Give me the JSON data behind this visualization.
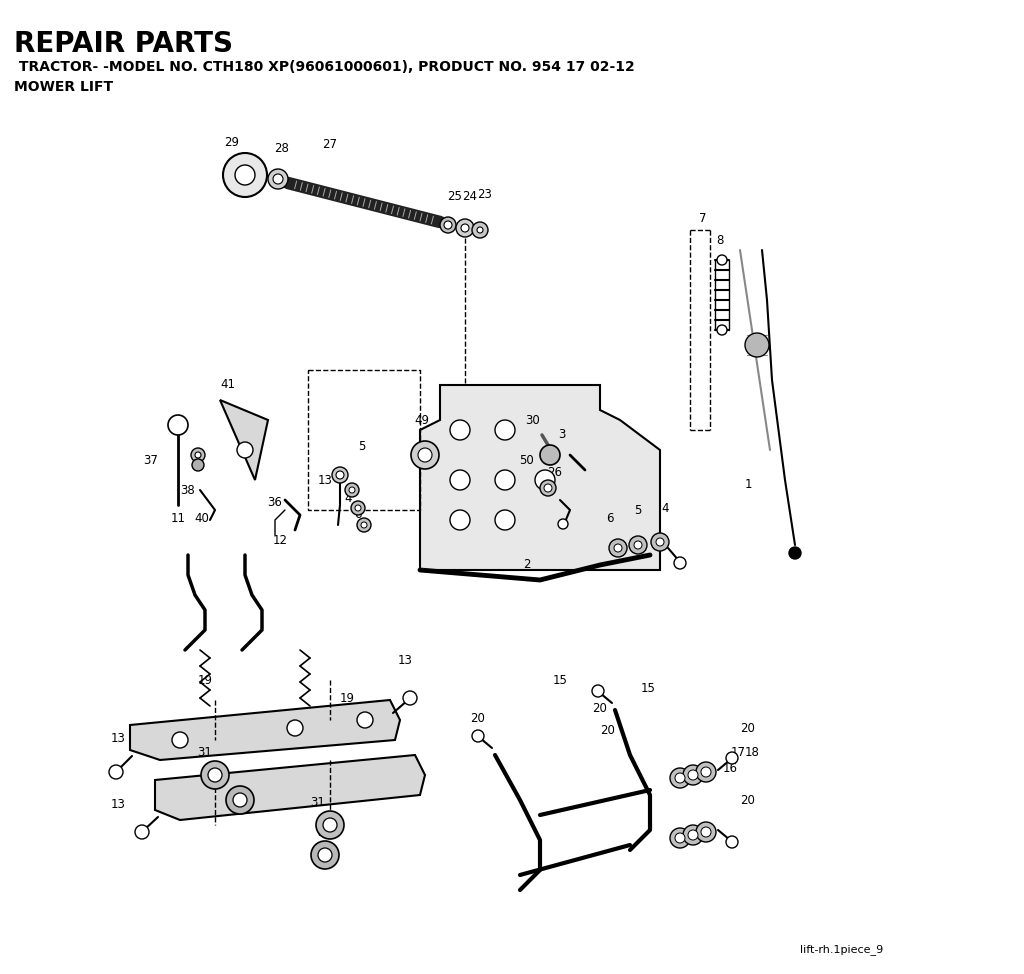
{
  "title": "REPAIR PARTS",
  "subtitle": " TRACTOR- -MODEL NO. CTH180 XP(96061000601), PRODUCT NO. 954 17 02-12",
  "subtitle2": "MOWER LIFT",
  "footer": "lift-rh.1piece_9",
  "bg_color": "#ffffff",
  "figw": 10.24,
  "figh": 9.74,
  "dpi": 100
}
